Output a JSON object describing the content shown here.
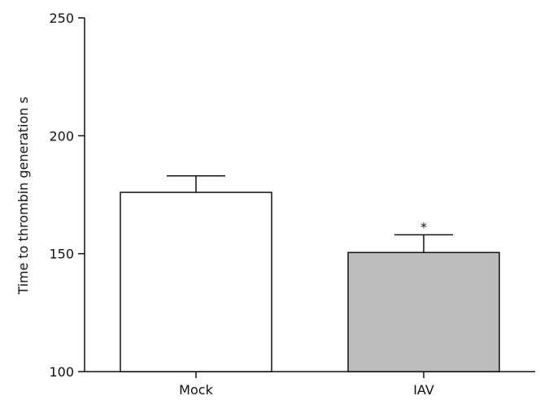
{
  "chart_data": {
    "type": "bar",
    "categories": [
      "Mock",
      "IAV"
    ],
    "values": [
      176,
      150.5
    ],
    "error_upper": [
      183,
      158
    ],
    "bar_colors": [
      "#ffffff",
      "#bdbdbd"
    ],
    "annotations": [
      "",
      "*"
    ],
    "title": "",
    "xlabel": "",
    "ylabel": "Time to thrombin generation s",
    "ylim": [
      100,
      250
    ],
    "yticks": [
      100,
      150,
      200,
      250
    ],
    "grid": false
  }
}
